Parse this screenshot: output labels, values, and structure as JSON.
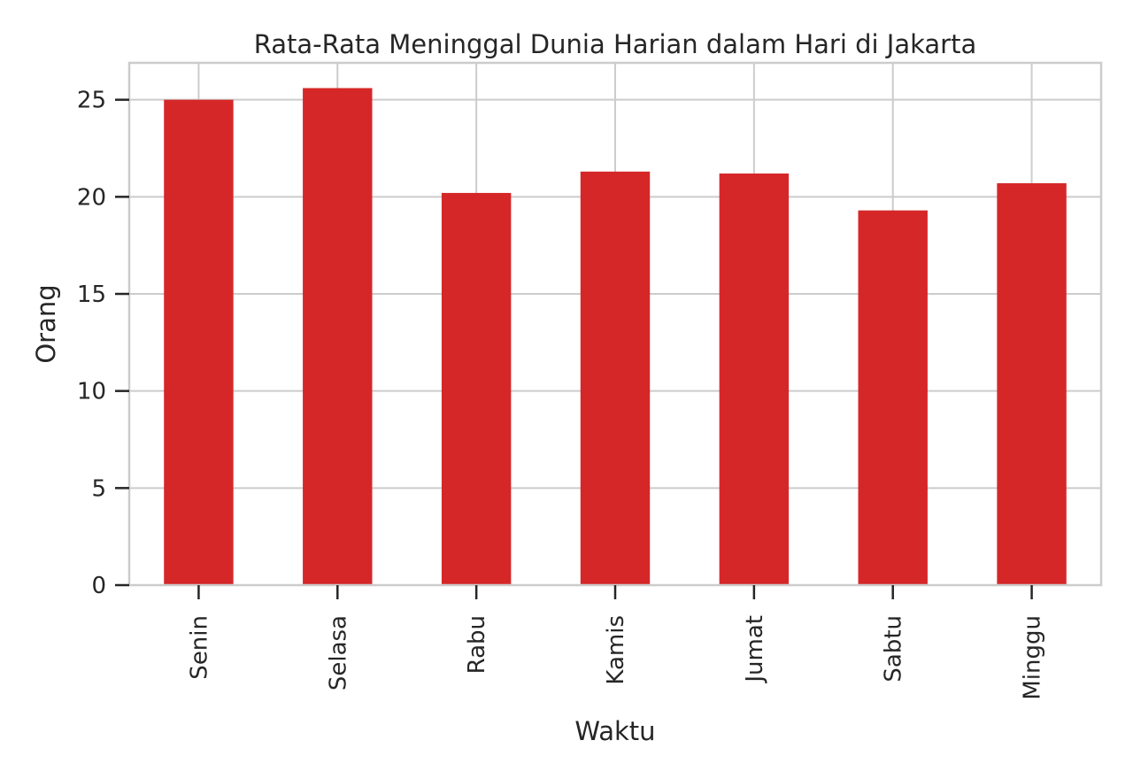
{
  "chart_data": {
    "type": "bar",
    "title": "Rata-Rata Meninggal Dunia Harian dalam Hari di Jakarta",
    "xlabel": "Waktu",
    "ylabel": "Orang",
    "categories": [
      "Senin",
      "Selasa",
      "Rabu",
      "Kamis",
      "Jumat",
      "Sabtu",
      "Minggu"
    ],
    "values": [
      25.0,
      25.6,
      20.2,
      21.3,
      21.2,
      19.3,
      20.7
    ],
    "ylim": [
      0,
      26.9
    ],
    "yticks": [
      0,
      5,
      10,
      15,
      20,
      25
    ],
    "ytick_labels": [
      "0",
      "5",
      "10",
      "15",
      "20",
      "25"
    ],
    "grid": true,
    "bar_color": "#d62728",
    "grid_color": "#cccccc",
    "text_color": "#262626"
  }
}
